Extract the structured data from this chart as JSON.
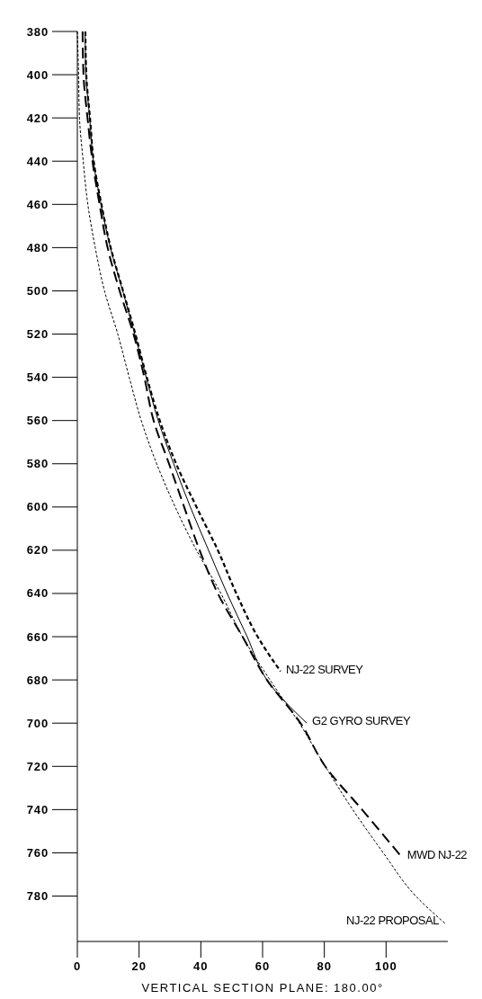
{
  "chart_data": {
    "type": "line",
    "xlabel": "VERTICAL SECTION PLANE: 180.00°",
    "xlim": [
      0,
      120
    ],
    "ylim": [
      801,
      380
    ],
    "xticks": [
      0,
      20,
      40,
      60,
      80,
      100
    ],
    "yticks": [
      380,
      400,
      420,
      440,
      460,
      480,
      500,
      520,
      540,
      560,
      580,
      600,
      620,
      640,
      660,
      680,
      700,
      720,
      740,
      760,
      780
    ],
    "grid": false,
    "series": [
      {
        "name": "NJ-22 SURVEY",
        "color": "#000000",
        "line_style": "dashed",
        "x": [
          2.6,
          2.9,
          4.1,
          5.3,
          7.8,
          10.8,
          14.8,
          18.8,
          22.5,
          26.7,
          32,
          38.6,
          45.5,
          51.5,
          58.4,
          65.8
        ],
        "values": [
          380,
          400,
          420,
          440,
          460,
          480,
          500,
          520,
          540,
          560,
          580,
          600,
          620,
          640,
          660,
          676
        ]
      },
      {
        "name": "G2 GYRO SURVEY",
        "color": "#000000",
        "line_style": "solid",
        "x": [
          2.5,
          2.8,
          4,
          5.2,
          7.7,
          10.7,
          14.7,
          18.6,
          22.3,
          26.2,
          31.2,
          36.6,
          42.5,
          48.5,
          55,
          61.4,
          74.3
        ],
        "values": [
          380,
          400,
          420,
          440,
          460,
          480,
          500,
          520,
          540,
          560,
          580,
          600,
          620,
          640,
          660,
          680,
          700
        ]
      },
      {
        "name": "MWD NJ-22",
        "color": "#000000",
        "line_style": "dashed",
        "x": [
          1.7,
          2,
          3.3,
          4.9,
          7.2,
          9.8,
          13.7,
          18.2,
          21.7,
          24.7,
          29.7,
          34.6,
          39.6,
          45.5,
          53.5,
          61.4,
          72.3,
          80.3,
          92.2,
          105.1
        ],
        "values": [
          380,
          400,
          420,
          440,
          460,
          480,
          500,
          520,
          540,
          560,
          580,
          600,
          620,
          640,
          660,
          680,
          700,
          720,
          740,
          762
        ]
      },
      {
        "name": "NJ-22 PROPOSAL",
        "color": "#000000",
        "line_style": "dotted",
        "x": [
          0,
          0.4,
          0.7,
          1.9,
          3.4,
          5.8,
          8.8,
          13.1,
          16.8,
          20.7,
          25.7,
          31.7,
          38.6,
          46.5,
          53.5,
          62.4,
          71.9,
          80.3,
          89.2,
          99.1,
          109.6,
          119.4
        ],
        "values": [
          380,
          400,
          420,
          440,
          460,
          480,
          500,
          520,
          540,
          560,
          580,
          600,
          620,
          640,
          660,
          680,
          700,
          720,
          740,
          760,
          780,
          793
        ]
      }
    ]
  }
}
